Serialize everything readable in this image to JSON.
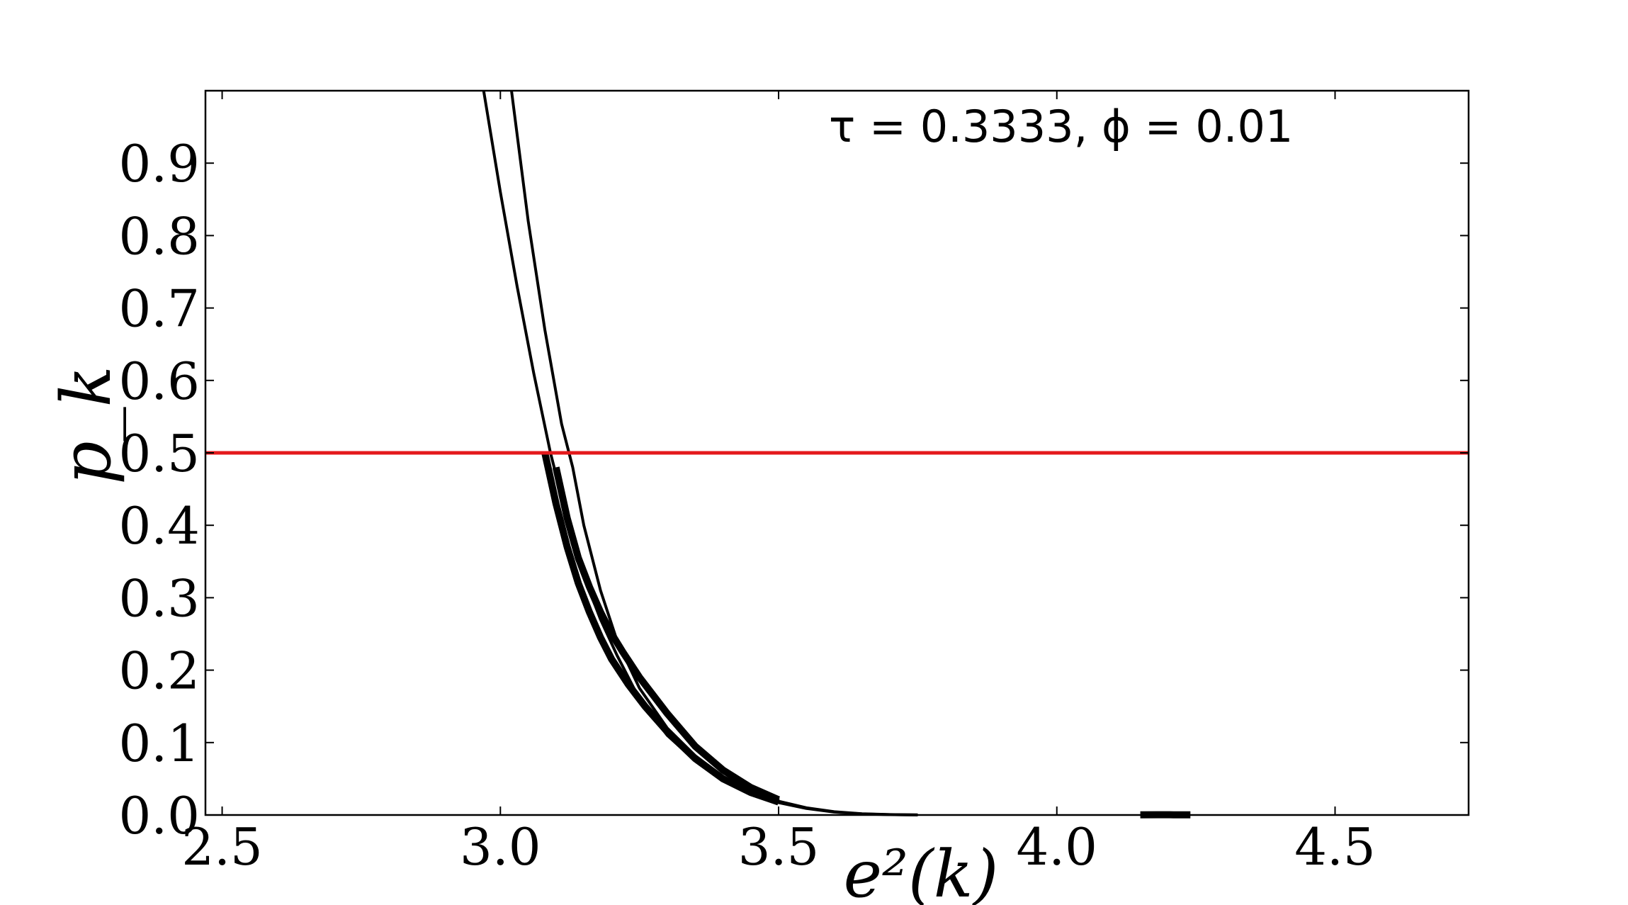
{
  "chart_data": {
    "type": "line",
    "annotation": "τ = 0.3333, ϕ = 0.01",
    "xlabel": "e²(k)",
    "ylabel": "p_k",
    "xlim": [
      2.47,
      4.74
    ],
    "ylim": [
      0.0,
      1.0
    ],
    "x_ticks": [
      "2.5",
      "3.0",
      "3.5",
      "4.0",
      "4.5"
    ],
    "y_ticks": [
      "0.0",
      "0.1",
      "0.2",
      "0.3",
      "0.4",
      "0.5",
      "0.6",
      "0.7",
      "0.8",
      "0.9"
    ],
    "grid": false,
    "legend": "none",
    "threshold": {
      "y": 0.5,
      "color": "#e41a1c"
    },
    "curve_color": "#000000",
    "band_note": "dense family of curves between the two boundary curves",
    "series": [
      {
        "x": [
          2.97,
          3.0,
          3.03,
          3.06,
          3.09,
          3.12,
          3.15,
          3.18,
          3.21,
          3.25,
          3.3,
          3.35,
          3.4,
          3.45,
          3.5,
          3.55,
          3.6,
          3.65,
          3.7,
          3.75
        ],
        "y": [
          1.0,
          0.86,
          0.73,
          0.61,
          0.5,
          0.41,
          0.33,
          0.27,
          0.22,
          0.16,
          0.11,
          0.075,
          0.048,
          0.03,
          0.017,
          0.009,
          0.004,
          0.0015,
          0.0005,
          0.0001
        ]
      },
      {
        "x": [
          3.02,
          3.05,
          3.08,
          3.11,
          3.13,
          3.15,
          3.18,
          3.21,
          3.25,
          3.3,
          3.35,
          3.4,
          3.45,
          3.5,
          3.55,
          3.6,
          3.65,
          3.7,
          3.75
        ],
        "y": [
          1.0,
          0.82,
          0.67,
          0.54,
          0.48,
          0.4,
          0.31,
          0.24,
          0.175,
          0.12,
          0.082,
          0.053,
          0.033,
          0.019,
          0.01,
          0.0045,
          0.0017,
          0.0006,
          0.0001
        ]
      },
      {
        "x": [
          3.1,
          3.12,
          3.14,
          3.16,
          3.18,
          3.2,
          3.22,
          3.25,
          3.3,
          3.35,
          3.4,
          3.45,
          3.5
        ],
        "y": [
          0.48,
          0.41,
          0.355,
          0.315,
          0.28,
          0.25,
          0.225,
          0.19,
          0.14,
          0.095,
          0.062,
          0.038,
          0.021
        ]
      },
      {
        "x": [
          3.08,
          3.1,
          3.12,
          3.14,
          3.16,
          3.18,
          3.2,
          3.23,
          3.26,
          3.3,
          3.35,
          3.4,
          3.45,
          3.5
        ],
        "y": [
          0.5,
          0.43,
          0.37,
          0.32,
          0.28,
          0.245,
          0.215,
          0.18,
          0.15,
          0.115,
          0.078,
          0.05,
          0.031,
          0.018
        ]
      },
      {
        "x": [
          4.15,
          4.18,
          4.21,
          4.24
        ],
        "y": [
          0.0003,
          0.0004,
          0.0003,
          0.0002
        ]
      }
    ]
  }
}
